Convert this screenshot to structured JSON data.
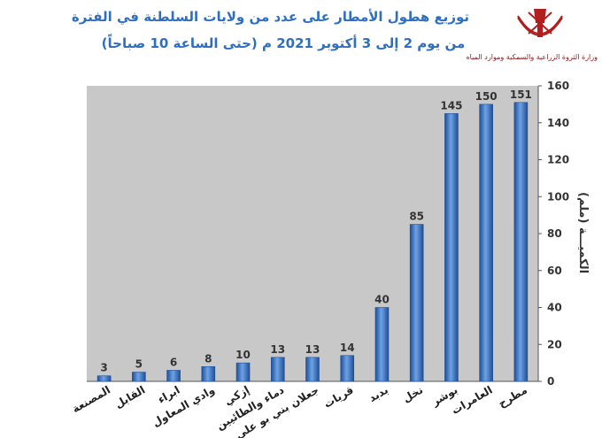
{
  "header": {
    "title_line1": "توزيع هطول الأمطار على عدد من ولايات السلطنة في الفترة",
    "title_line2": "من يوم 2 إلى 3 أكتوبر 2021 م (حتى الساعة 10 صباحاً)",
    "ministry": "وزارة الثروة الزراعية والسمكية وموارد المياه"
  },
  "chart_data": {
    "type": "bar",
    "categories": [
      "مطرح",
      "العامرات",
      "بوشر",
      "نخل",
      "بدبد",
      "قريات",
      "جعلان بني بو علي",
      "دماء والطائيين",
      "إزكي",
      "وادي المعاول",
      "ابراء",
      "القابل",
      "المصنعة"
    ],
    "values": [
      151,
      150,
      145,
      85,
      40,
      14,
      13,
      13,
      10,
      8,
      6,
      5,
      3
    ],
    "ylabel": "الكميـــة (ملم)",
    "xlabel": "",
    "ylim": [
      0,
      160
    ],
    "yticks": [
      0,
      20,
      40,
      60,
      80,
      100,
      120,
      140,
      160
    ],
    "y_axis_side": "right",
    "grid": false,
    "data_labels": true,
    "colors": {
      "bar": "#4a86d4",
      "bar_dark": "#1f4f96",
      "plot_bg": "#c8c8c8",
      "label": "#333333"
    }
  }
}
